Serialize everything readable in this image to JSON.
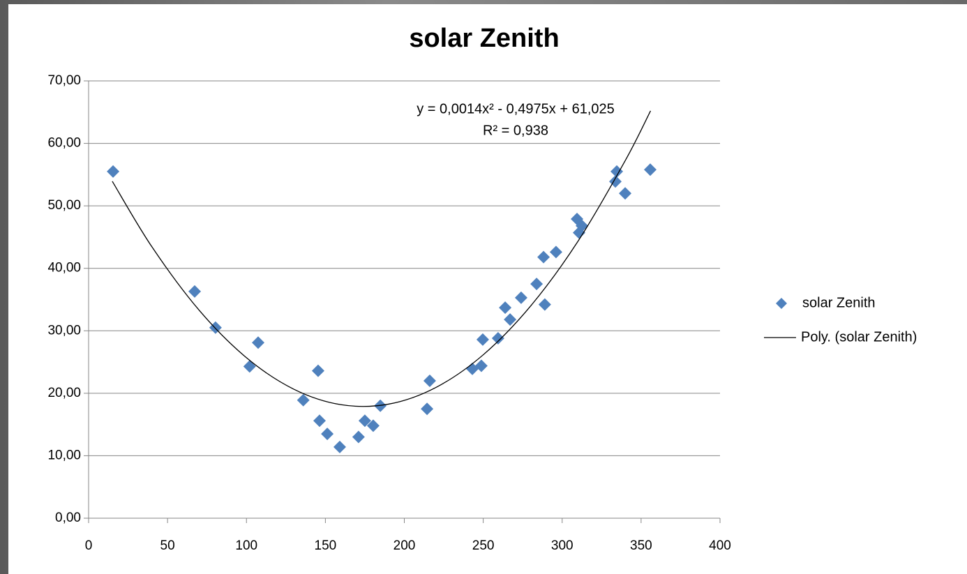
{
  "chart_data": {
    "type": "scatter",
    "title": "solar Zenith",
    "series": [
      {
        "name": "solar Zenith",
        "color": "#4f81bd",
        "marker": "diamond",
        "x": [
          15.5,
          67.2,
          80.4,
          102,
          107.4,
          136,
          145.4,
          146.3,
          151.2,
          159.1,
          171,
          175,
          180.3,
          184.8,
          214.4,
          216.1,
          243.1,
          248.8,
          249.7,
          259.4,
          263.9,
          267,
          274,
          283.8,
          288.2,
          289,
          296.1,
          309.4,
          310.7,
          312.5,
          333.7,
          334.6,
          339.9,
          355.8
        ],
        "values": [
          55.5,
          36.3,
          30.5,
          24.3,
          28.1,
          18.9,
          23.6,
          15.6,
          13.5,
          11.4,
          13.0,
          15.6,
          14.8,
          18.0,
          17.5,
          22.0,
          23.9,
          24.4,
          28.6,
          28.8,
          33.7,
          31.8,
          35.3,
          37.5,
          41.8,
          34.2,
          42.6,
          47.9,
          45.7,
          46.8,
          53.9,
          55.5,
          52.0,
          55.8
        ]
      },
      {
        "name": "Poly. (solar Zenith)",
        "color": "#000000",
        "marker": "line",
        "x": [
          15,
          40,
          70,
          100,
          130,
          160,
          190,
          220,
          250,
          280,
          310,
          340,
          356
        ],
        "values": [
          53.93,
          43.48,
          33.3,
          25.69,
          20.65,
          18.17,
          18.26,
          20.93,
          26.16,
          33.96,
          44.32,
          57.26,
          65.21
        ]
      }
    ],
    "annotations": [
      "y = 0,0014x² - 0,4975x + 61,025",
      "R² = 0,938"
    ],
    "xlim": [
      0,
      400
    ],
    "xticks": [
      0,
      50,
      100,
      150,
      200,
      250,
      300,
      350,
      400
    ],
    "ylim": [
      0,
      70
    ],
    "yticks": [
      {
        "value": 0,
        "label": "0,00"
      },
      {
        "value": 10,
        "label": "10,00"
      },
      {
        "value": 20,
        "label": "20,00"
      },
      {
        "value": 30,
        "label": "30,00"
      },
      {
        "value": 40,
        "label": "40,00"
      },
      {
        "value": 50,
        "label": "50,00"
      },
      {
        "value": 60,
        "label": "60,00"
      },
      {
        "value": 70,
        "label": "70,00"
      }
    ],
    "grid": true,
    "legend": "right"
  }
}
